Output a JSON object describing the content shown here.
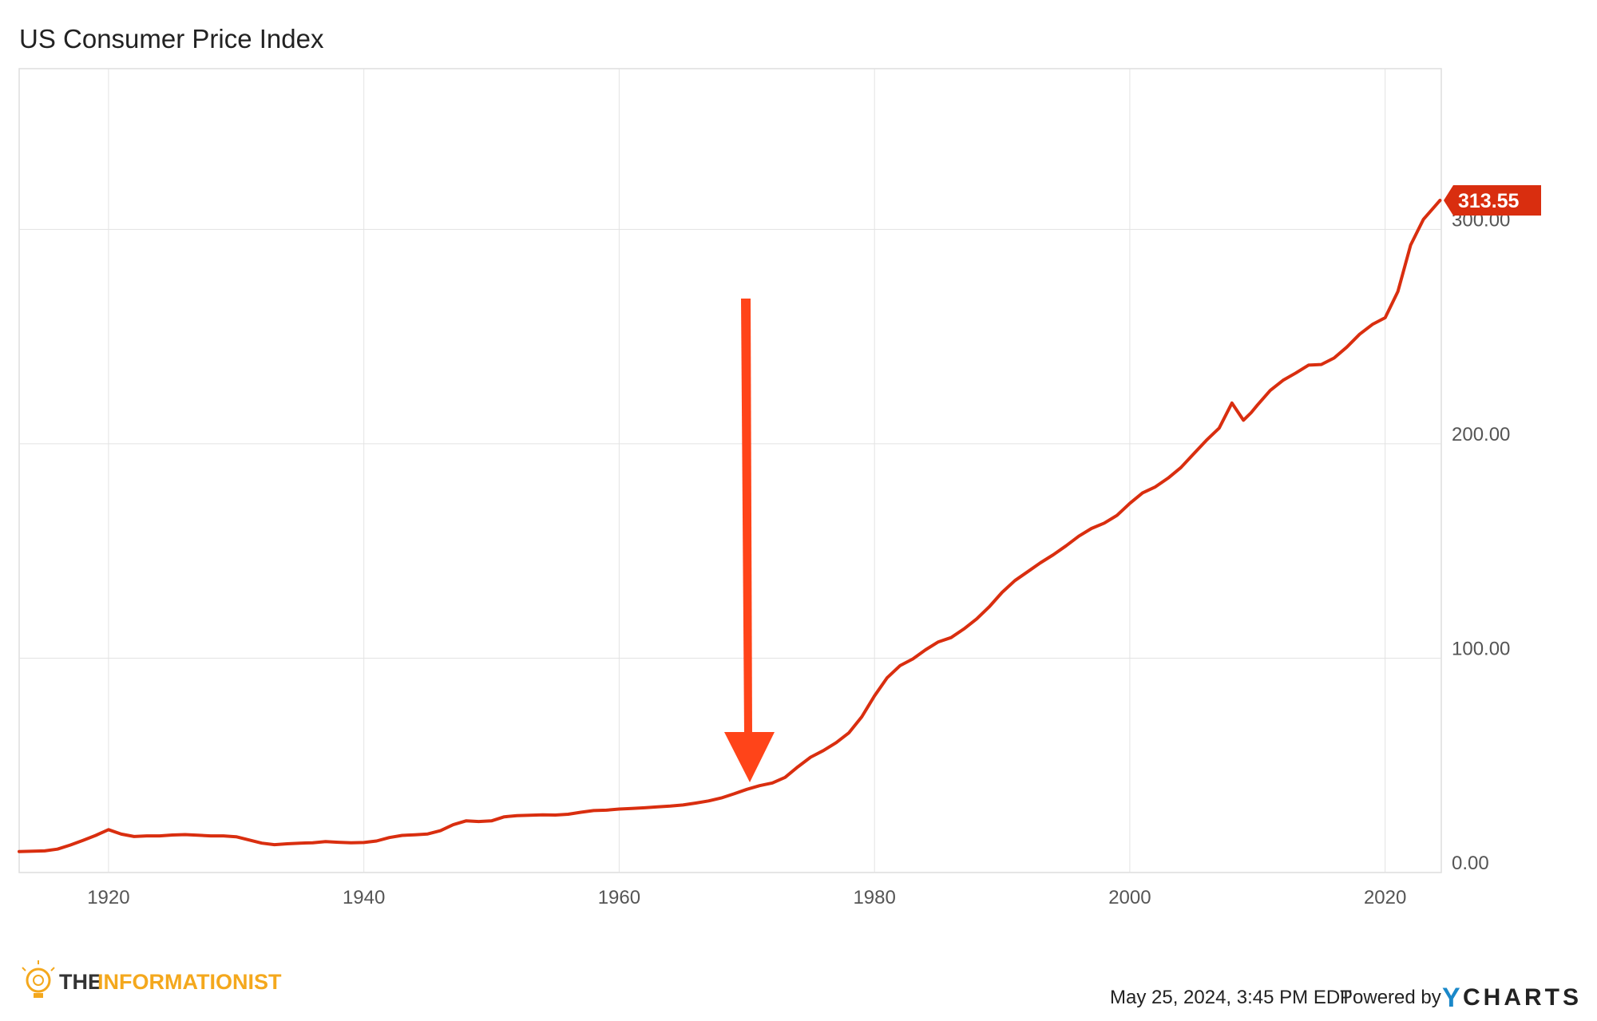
{
  "chart_data": {
    "type": "line",
    "title": "US Consumer Price Index",
    "xlabel": "",
    "ylabel": "",
    "xlim": [
      1913,
      2024.4
    ],
    "ylim": [
      0,
      375
    ],
    "x_ticks": [
      "1920",
      "1940",
      "1960",
      "1980",
      "2000",
      "2020"
    ],
    "y_ticks": [
      "0.00",
      "100.00",
      "200.00",
      "300.00"
    ],
    "grid": true,
    "line_color": "#d92e0f",
    "last_value_label": "313.55",
    "series": [
      {
        "values": [
          [
            1913,
            9.8
          ],
          [
            1915,
            10.1
          ],
          [
            1916,
            10.9
          ],
          [
            1917,
            12.8
          ],
          [
            1918,
            15.0
          ],
          [
            1919,
            17.3
          ],
          [
            1920,
            20.0
          ],
          [
            1921,
            17.9
          ],
          [
            1922,
            16.8
          ],
          [
            1923,
            17.1
          ],
          [
            1924,
            17.1
          ],
          [
            1925,
            17.5
          ],
          [
            1926,
            17.7
          ],
          [
            1927,
            17.4
          ],
          [
            1928,
            17.1
          ],
          [
            1929,
            17.1
          ],
          [
            1930,
            16.7
          ],
          [
            1931,
            15.2
          ],
          [
            1932,
            13.7
          ],
          [
            1933,
            13.0
          ],
          [
            1934,
            13.4
          ],
          [
            1935,
            13.7
          ],
          [
            1936,
            13.9
          ],
          [
            1937,
            14.4
          ],
          [
            1938,
            14.1
          ],
          [
            1939,
            13.9
          ],
          [
            1940,
            14.0
          ],
          [
            1941,
            14.7
          ],
          [
            1942,
            16.3
          ],
          [
            1943,
            17.3
          ],
          [
            1944,
            17.6
          ],
          [
            1945,
            18.0
          ],
          [
            1946,
            19.5
          ],
          [
            1947,
            22.3
          ],
          [
            1948,
            24.1
          ],
          [
            1949,
            23.8
          ],
          [
            1950,
            24.1
          ],
          [
            1951,
            26.0
          ],
          [
            1952,
            26.5
          ],
          [
            1953,
            26.7
          ],
          [
            1954,
            26.9
          ],
          [
            1955,
            26.8
          ],
          [
            1956,
            27.2
          ],
          [
            1957,
            28.1
          ],
          [
            1958,
            28.9
          ],
          [
            1959,
            29.1
          ],
          [
            1960,
            29.6
          ],
          [
            1961,
            29.9
          ],
          [
            1962,
            30.2
          ],
          [
            1963,
            30.6
          ],
          [
            1964,
            31.0
          ],
          [
            1965,
            31.5
          ],
          [
            1966,
            32.4
          ],
          [
            1967,
            33.4
          ],
          [
            1968,
            34.8
          ],
          [
            1969,
            36.7
          ],
          [
            1970,
            38.8
          ],
          [
            1971,
            40.5
          ],
          [
            1972,
            41.8
          ],
          [
            1973,
            44.4
          ],
          [
            1974,
            49.3
          ],
          [
            1975,
            53.8
          ],
          [
            1976,
            56.9
          ],
          [
            1977,
            60.6
          ],
          [
            1978,
            65.2
          ],
          [
            1979,
            72.6
          ],
          [
            1980,
            82.4
          ],
          [
            1981,
            90.9
          ],
          [
            1982,
            96.5
          ],
          [
            1983,
            99.6
          ],
          [
            1984,
            103.9
          ],
          [
            1985,
            107.6
          ],
          [
            1986,
            109.6
          ],
          [
            1987,
            113.6
          ],
          [
            1988,
            118.3
          ],
          [
            1989,
            124.0
          ],
          [
            1990,
            130.7
          ],
          [
            1991,
            136.2
          ],
          [
            1992,
            140.3
          ],
          [
            1993,
            144.5
          ],
          [
            1994,
            148.2
          ],
          [
            1995,
            152.4
          ],
          [
            1996,
            156.9
          ],
          [
            1997,
            160.5
          ],
          [
            1998,
            163.0
          ],
          [
            1999,
            166.6
          ],
          [
            2000,
            172.2
          ],
          [
            2001,
            177.1
          ],
          [
            2002,
            179.9
          ],
          [
            2003,
            184.0
          ],
          [
            2004,
            188.9
          ],
          [
            2005,
            195.3
          ],
          [
            2006,
            201.6
          ],
          [
            2007,
            207.3
          ],
          [
            2008,
            219.0
          ],
          [
            2008.9,
            211.0
          ],
          [
            2009.5,
            214.5
          ],
          [
            2010,
            218.1
          ],
          [
            2011,
            224.9
          ],
          [
            2012,
            229.6
          ],
          [
            2013,
            233.0
          ],
          [
            2014,
            236.7
          ],
          [
            2015,
            237.0
          ],
          [
            2016,
            240.0
          ],
          [
            2017,
            245.1
          ],
          [
            2018,
            251.1
          ],
          [
            2019,
            255.7
          ],
          [
            2020,
            258.8
          ],
          [
            2021,
            271.0
          ],
          [
            2022,
            292.7
          ],
          [
            2023,
            304.7
          ],
          [
            2024.3,
            313.55
          ]
        ]
      }
    ]
  },
  "footer": {
    "timestamp": "May 25, 2024, 3:45 PM EDT",
    "powered_by": "Powered by",
    "ycharts_y": "Y",
    "ycharts_rest": "CHARTS",
    "brand_the": "THE",
    "brand_info": "INFORMATIONIST"
  },
  "colors": {
    "line": "#d92e0f",
    "arrow": "#ff4419",
    "grid": "#e3e3e3",
    "brand_accent": "#f4a81d",
    "ycharts_accent": "#1a88c9"
  }
}
